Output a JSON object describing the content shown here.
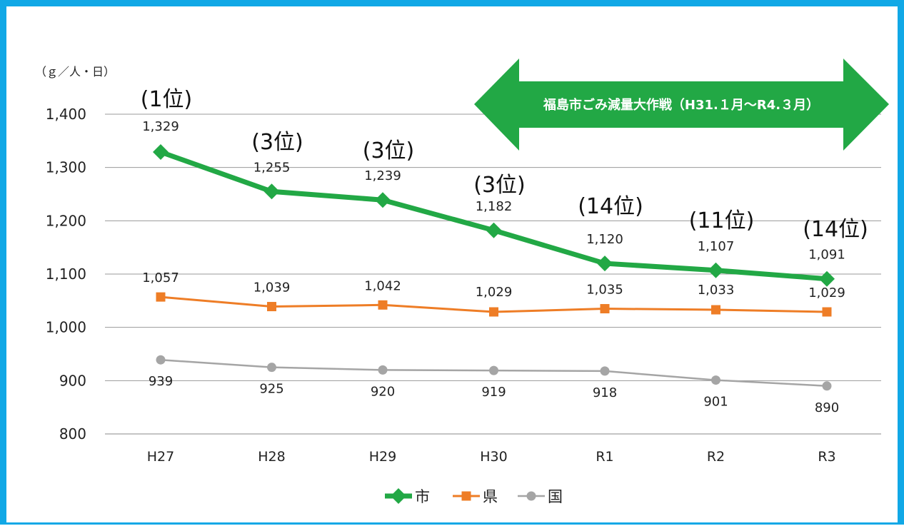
{
  "chart_data": {
    "type": "line",
    "categories": [
      "H27",
      "H28",
      "H29",
      "H30",
      "R1",
      "R2",
      "R3"
    ],
    "unit": "（ｇ／人・日）",
    "ylim": [
      800,
      1400
    ],
    "yticks": [
      800,
      900,
      1000,
      1100,
      1200,
      1300,
      1400
    ],
    "ytick_labels": [
      "800",
      "900",
      "1,000",
      "1,100",
      "1,200",
      "1,300",
      "1,400"
    ],
    "grid": true,
    "legend_position": "bottom-center",
    "series": [
      {
        "name": "市",
        "color": "#22a845",
        "marker": "diamond",
        "values": [
          1329,
          1255,
          1239,
          1182,
          1120,
          1107,
          1091
        ],
        "labels": [
          "1,329",
          "1,255",
          "1,239",
          "1,182",
          "1,120",
          "1,107",
          "1,091"
        ],
        "ranks": [
          "(1位)",
          "(3位)",
          "(3位)",
          "(3位)",
          "(14位)",
          "(11位)",
          "(14位)"
        ]
      },
      {
        "name": "県",
        "color": "#ee7d26",
        "marker": "square",
        "values": [
          1057,
          1039,
          1042,
          1029,
          1035,
          1033,
          1029
        ],
        "labels": [
          "1,057",
          "1,039",
          "1,042",
          "1,029",
          "1,035",
          "1,033",
          "1,029"
        ]
      },
      {
        "name": "国",
        "color": "#a5a5a5",
        "marker": "circle",
        "values": [
          939,
          925,
          920,
          919,
          918,
          901,
          890
        ],
        "labels": [
          "939",
          "925",
          "920",
          "919",
          "918",
          "901",
          "890"
        ]
      }
    ],
    "annotations": [
      {
        "type": "arrow-banner",
        "text": "福島市ごみ減量大作戦（H31.１月～R4.３月）",
        "color": "#22a845"
      }
    ]
  }
}
